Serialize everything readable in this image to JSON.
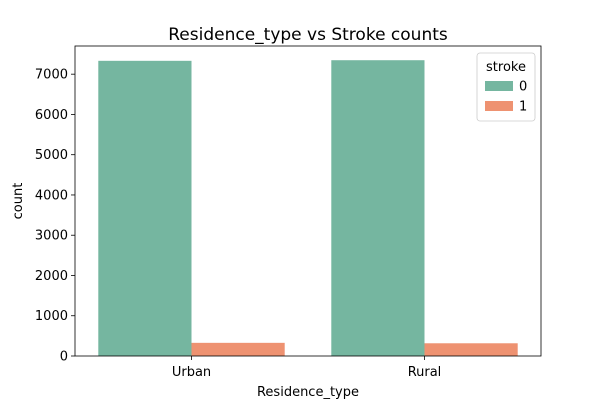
{
  "chart_data": {
    "type": "bar",
    "title": "Residence_type vs Stroke counts",
    "xlabel": "Residence_type",
    "ylabel": "count",
    "categories": [
      "Urban",
      "Rural"
    ],
    "series": [
      {
        "name": "0",
        "values": [
          7332,
          7347
        ]
      },
      {
        "name": "1",
        "values": [
          327,
          316
        ]
      }
    ],
    "ylim": [
      0,
      7700
    ],
    "yticks": [
      0,
      1000,
      2000,
      3000,
      4000,
      5000,
      6000,
      7000
    ],
    "ytick_labels": [
      "0",
      "1000",
      "2000",
      "3000",
      "4000",
      "5000",
      "6000",
      "7000"
    ],
    "legend": {
      "title": "stroke",
      "placement": "top-right"
    },
    "grid": false,
    "colors": {
      "0": "#75b6a0",
      "1": "#ee9271"
    }
  }
}
